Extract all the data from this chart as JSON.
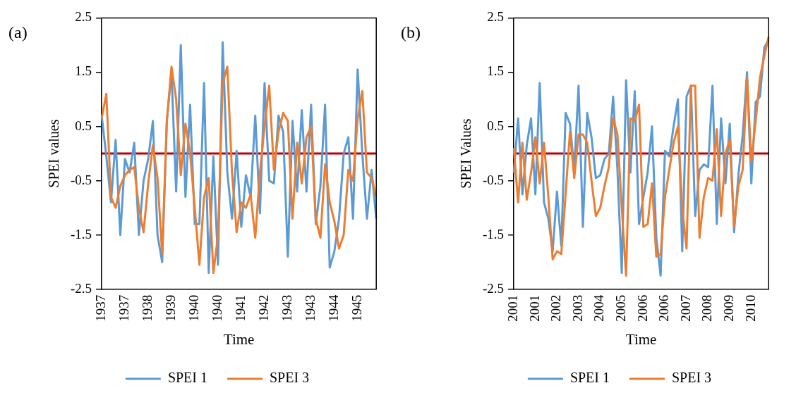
{
  "chart_data": [
    {
      "type": "line",
      "annotations": [
        "(a)"
      ],
      "xlabel": "Time",
      "ylabel": "SPEI values",
      "ylim": [
        -2.5,
        2.5
      ],
      "yticks": [
        -2.5,
        -1.5,
        -0.5,
        0.5,
        1.5,
        2.5
      ],
      "legend": "bottom",
      "ref_lines": [
        {
          "axis": "y",
          "value": 0,
          "color": "#c00000"
        }
      ],
      "categories": [
        "1937",
        null,
        null,
        null,
        null,
        "1937",
        null,
        null,
        null,
        null,
        "1938",
        null,
        null,
        null,
        null,
        "1939",
        null,
        null,
        null,
        null,
        "1940",
        null,
        null,
        null,
        null,
        "1940",
        null,
        null,
        null,
        null,
        "1941",
        null,
        null,
        null,
        null,
        "1942",
        null,
        null,
        null,
        null,
        "1943",
        null,
        null,
        null,
        null,
        "1943",
        null,
        null,
        null,
        null,
        "1944",
        null,
        null,
        null,
        null,
        "1945",
        null,
        null,
        null,
        null
      ],
      "series": [
        {
          "name": "SPEI 1",
          "color": "#5b9bd5",
          "values": [
            0.7,
            -0.05,
            -0.9,
            0.25,
            -1.5,
            -0.1,
            -0.35,
            0.2,
            -1.5,
            -0.5,
            -0.1,
            0.6,
            -1.5,
            -2.0,
            0.6,
            1.5,
            -0.7,
            2.0,
            -0.8,
            0.9,
            -1.3,
            -1.3,
            1.3,
            -2.2,
            -0.05,
            -2.05,
            2.05,
            -0.35,
            -1.2,
            0.05,
            -1.35,
            -0.4,
            -0.8,
            0.7,
            -1.1,
            1.3,
            -0.5,
            -0.55,
            0.7,
            0.4,
            -1.9,
            0.6,
            -0.7,
            0.8,
            -0.7,
            0.9,
            -1.3,
            -0.6,
            0.9,
            -2.1,
            -1.8,
            -1.2,
            0.0,
            0.3,
            -1.2,
            1.55,
            0.0,
            -1.2,
            -0.3,
            -1.2
          ]
        },
        {
          "name": "SPEI 3",
          "color": "#ed7d31",
          "values": [
            0.65,
            1.1,
            -0.8,
            -1.0,
            -0.6,
            -0.4,
            -0.3,
            -0.25,
            -1.0,
            -1.45,
            -0.55,
            0.15,
            -0.45,
            -1.85,
            0.6,
            1.6,
            1.0,
            -0.4,
            0.55,
            0.0,
            -1.0,
            -2.05,
            -0.8,
            -0.45,
            -2.2,
            -1.5,
            1.3,
            1.6,
            -0.35,
            -1.45,
            -0.9,
            -1.0,
            -0.75,
            -1.55,
            -0.35,
            0.5,
            1.25,
            -0.3,
            0.4,
            0.75,
            0.6,
            -1.2,
            0.2,
            -0.55,
            0.3,
            0.5,
            -1.2,
            -1.55,
            -0.2,
            -0.9,
            -1.25,
            -1.75,
            -1.5,
            -0.3,
            -0.5,
            0.65,
            1.15,
            -0.35,
            -0.45,
            -0.8
          ]
        }
      ]
    },
    {
      "type": "line",
      "annotations": [
        "(b)"
      ],
      "xlabel": "Time",
      "ylabel": "SPEI Values",
      "ylim": [
        -2.5,
        2.5
      ],
      "yticks": [
        -2.5,
        -1.5,
        -0.5,
        0.5,
        1.5,
        2.5
      ],
      "legend": "bottom",
      "ref_lines": [
        {
          "axis": "y",
          "value": 0,
          "color": "#c00000"
        }
      ],
      "categories": [
        "2001",
        null,
        null,
        null,
        null,
        "2001",
        null,
        null,
        null,
        null,
        "2002",
        null,
        null,
        null,
        null,
        "2003",
        null,
        null,
        null,
        null,
        "2004",
        null,
        null,
        null,
        null,
        "2005",
        null,
        null,
        null,
        null,
        "2006",
        null,
        null,
        null,
        null,
        "2006",
        null,
        null,
        null,
        null,
        "2007",
        null,
        null,
        null,
        null,
        "2008",
        null,
        null,
        null,
        null,
        "2009",
        null,
        null,
        null,
        null,
        "2010",
        null,
        null,
        null,
        null
      ],
      "series": [
        {
          "name": "SPEI 1",
          "color": "#5b9bd5",
          "values": [
            -0.35,
            0.65,
            -0.75,
            0.15,
            0.65,
            -0.75,
            1.3,
            -0.9,
            -1.2,
            -1.8,
            -0.7,
            -1.7,
            0.75,
            0.55,
            -0.3,
            1.25,
            -1.35,
            0.75,
            0.3,
            -0.45,
            -0.4,
            -0.1,
            0.0,
            1.05,
            -0.3,
            -2.2,
            1.35,
            -0.35,
            1.15,
            -1.3,
            -0.8,
            -0.35,
            0.5,
            -1.55,
            -2.25,
            0.05,
            -0.05,
            0.5,
            1.0,
            -1.8,
            1.05,
            1.25,
            -1.15,
            -0.3,
            -0.2,
            -0.25,
            1.25,
            -1.3,
            0.65,
            -0.55,
            0.55,
            -1.45,
            -0.4,
            0.35,
            1.5,
            -0.55,
            0.95,
            1.05,
            1.95,
            2.1
          ]
        },
        {
          "name": "SPEI 3",
          "color": "#ed7d31",
          "values": [
            0.1,
            -0.9,
            0.2,
            -0.85,
            -0.35,
            0.3,
            -0.55,
            0.2,
            -0.8,
            -1.95,
            -1.8,
            -1.85,
            -0.75,
            0.4,
            -0.45,
            0.35,
            0.35,
            0.2,
            -0.5,
            -1.15,
            -1.0,
            -0.6,
            -0.25,
            0.65,
            0.35,
            -1.0,
            -2.25,
            0.65,
            0.6,
            0.9,
            -1.35,
            -1.3,
            -0.55,
            -1.9,
            -1.85,
            -0.8,
            -0.3,
            0.2,
            0.5,
            -1.0,
            -1.75,
            1.25,
            1.25,
            -1.55,
            -0.8,
            -0.45,
            -0.5,
            0.45,
            -1.15,
            0.0,
            0.25,
            -1.35,
            -0.6,
            -0.3,
            1.4,
            -0.15,
            0.6,
            1.4,
            1.8,
            2.15
          ]
        }
      ]
    }
  ]
}
